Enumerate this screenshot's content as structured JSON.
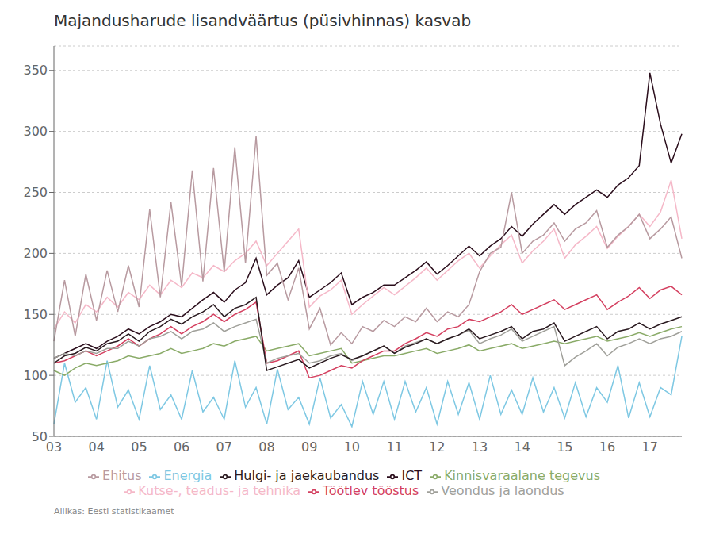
{
  "chart_data": {
    "type": "line",
    "title": "Majandusharude lisandväärtus (püsivhinnas) kasvab",
    "annotations": [
      "Allikas: Eesti statistikaamet"
    ],
    "categories": [
      "03",
      null,
      null,
      null,
      "04",
      null,
      null,
      null,
      "05",
      null,
      null,
      null,
      "06",
      null,
      null,
      null,
      "07",
      null,
      null,
      null,
      "08",
      null,
      null,
      null,
      "09",
      null,
      null,
      null,
      "10",
      null,
      null,
      null,
      "11",
      null,
      null,
      null,
      "12",
      null,
      null,
      null,
      "13",
      null,
      null,
      null,
      "14",
      null,
      null,
      null,
      "15",
      null,
      null,
      null,
      "16",
      null,
      null,
      null,
      "17",
      null,
      null,
      null
    ],
    "ylim": [
      50,
      370
    ],
    "yticks": [
      50,
      100,
      150,
      200,
      250,
      300,
      350
    ],
    "grid": "y",
    "legend": "bottom",
    "series": [
      {
        "name": "Energia",
        "color": "#7ec8e3",
        "values": [
          60,
          110,
          78,
          90,
          64,
          112,
          74,
          88,
          64,
          108,
          72,
          84,
          64,
          104,
          70,
          82,
          64,
          112,
          74,
          90,
          60,
          105,
          72,
          82,
          60,
          98,
          65,
          76,
          58,
          95,
          68,
          95,
          64,
          95,
          70,
          90,
          60,
          95,
          68,
          94,
          64,
          100,
          68,
          88,
          68,
          98,
          70,
          90,
          65,
          94,
          66,
          90,
          78,
          108,
          65,
          94,
          66,
          90,
          84,
          132
        ]
      },
      {
        "name": "Kinnisvaraalane tegevus",
        "color": "#8aab68",
        "values": [
          104,
          100,
          106,
          110,
          108,
          110,
          112,
          116,
          114,
          116,
          118,
          122,
          118,
          120,
          122,
          126,
          124,
          128,
          130,
          132,
          120,
          122,
          124,
          126,
          116,
          118,
          120,
          122,
          110,
          112,
          114,
          116,
          116,
          118,
          120,
          122,
          118,
          120,
          122,
          125,
          120,
          122,
          124,
          126,
          122,
          124,
          126,
          128,
          126,
          128,
          130,
          132,
          128,
          130,
          132,
          135,
          132,
          135,
          138,
          140
        ]
      },
      {
        "name": "Töötlev tööstus",
        "color": "#d44060",
        "values": [
          110,
          112,
          116,
          120,
          116,
          120,
          124,
          130,
          124,
          130,
          134,
          140,
          134,
          140,
          144,
          150,
          144,
          150,
          154,
          160,
          110,
          112,
          116,
          120,
          98,
          100,
          104,
          108,
          106,
          112,
          116,
          120,
          120,
          126,
          130,
          135,
          132,
          138,
          140,
          146,
          144,
          148,
          152,
          158,
          150,
          154,
          158,
          162,
          154,
          158,
          162,
          166,
          154,
          160,
          165,
          172,
          163,
          170,
          173,
          166
        ]
      },
      {
        "name": "ICT",
        "color": "#2b0e1c",
        "values": [
          114,
          118,
          122,
          126,
          122,
          128,
          132,
          138,
          134,
          140,
          144,
          150,
          148,
          155,
          162,
          168,
          160,
          170,
          176,
          196,
          166,
          174,
          180,
          194,
          164,
          170,
          176,
          184,
          158,
          164,
          168,
          174,
          174,
          180,
          186,
          193,
          183,
          190,
          198,
          206,
          198,
          206,
          212,
          222,
          214,
          224,
          232,
          240,
          232,
          240,
          246,
          252,
          246,
          256,
          262,
          272,
          348,
          306,
          274,
          298
        ]
      },
      {
        "name": "Veondus ja laondus",
        "color": "#a0a09a",
        "values": [
          114,
          118,
          116,
          120,
          118,
          122,
          122,
          128,
          124,
          130,
          132,
          136,
          130,
          136,
          138,
          143,
          136,
          140,
          143,
          146,
          110,
          114,
          116,
          118,
          110,
          112,
          116,
          118,
          112,
          116,
          120,
          124,
          118,
          124,
          127,
          130,
          126,
          130,
          133,
          137,
          126,
          130,
          133,
          138,
          128,
          132,
          136,
          140,
          108,
          115,
          120,
          126,
          116,
          123,
          126,
          130,
          126,
          130,
          132,
          136
        ]
      },
      {
        "name": "Hulgi- ja jaekaubandus",
        "color": "#2a1a20",
        "values": [
          110,
          116,
          118,
          123,
          120,
          126,
          128,
          134,
          128,
          136,
          140,
          146,
          142,
          148,
          152,
          158,
          148,
          155,
          158,
          164,
          104,
          107,
          110,
          113,
          106,
          110,
          114,
          117,
          113,
          116,
          120,
          124,
          118,
          123,
          126,
          130,
          126,
          130,
          133,
          138,
          130,
          133,
          136,
          140,
          130,
          136,
          138,
          143,
          128,
          132,
          136,
          140,
          130,
          136,
          138,
          143,
          138,
          142,
          145,
          148
        ]
      },
      {
        "name": "Kutse-, teadus- ja tehnika",
        "color": "#f5b8c8",
        "values": [
          138,
          152,
          143,
          158,
          152,
          164,
          156,
          168,
          162,
          174,
          166,
          178,
          172,
          184,
          180,
          190,
          185,
          194,
          200,
          210,
          190,
          200,
          210,
          220,
          156,
          165,
          170,
          178,
          150,
          158,
          165,
          172,
          166,
          173,
          180,
          188,
          178,
          186,
          194,
          200,
          188,
          198,
          207,
          215,
          192,
          202,
          210,
          220,
          196,
          207,
          214,
          222,
          204,
          214,
          222,
          232,
          222,
          234,
          260,
          212
        ]
      },
      {
        "name": "Ehitus",
        "color": "#b89aa0",
        "values": [
          128,
          178,
          132,
          183,
          145,
          186,
          152,
          190,
          156,
          236,
          164,
          242,
          173,
          268,
          177,
          270,
          185,
          287,
          192,
          296,
          182,
          192,
          162,
          188,
          138,
          155,
          125,
          135,
          126,
          140,
          136,
          145,
          140,
          148,
          144,
          155,
          144,
          152,
          148,
          158,
          185,
          200,
          205,
          250,
          200,
          210,
          215,
          225,
          210,
          220,
          225,
          235,
          205,
          215,
          222,
          232,
          212,
          220,
          230,
          196
        ]
      }
    ]
  }
}
